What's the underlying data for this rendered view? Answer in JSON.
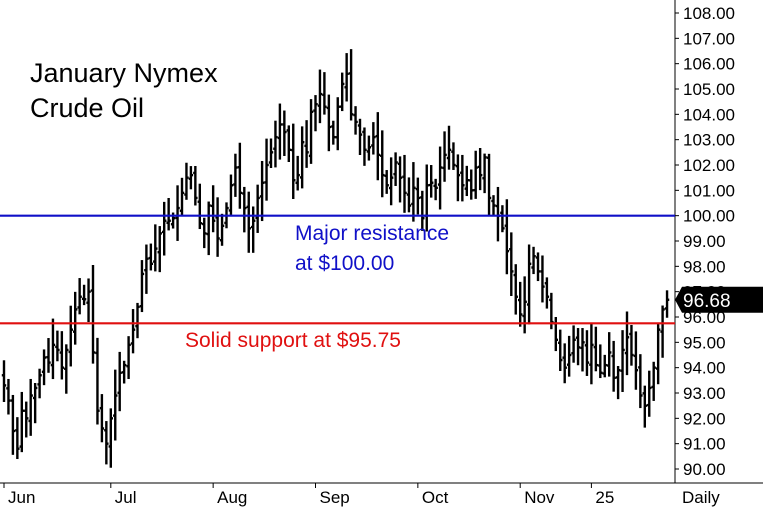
{
  "chart_data": {
    "type": "bar",
    "title_lines": [
      "January Nymex",
      "Crude Oil"
    ],
    "timeframe_label": "Daily",
    "ylim": [
      90,
      108.5
    ],
    "y_ticks": [
      "108.00",
      "107.00",
      "106.00",
      "105.00",
      "104.00",
      "103.00",
      "102.00",
      "101.00",
      "100.00",
      "99.00",
      "98.00",
      "97.00",
      "96.00",
      "95.00",
      "94.00",
      "93.00",
      "92.00",
      "91.00",
      "90.00"
    ],
    "x_labels": [
      "Jun",
      "Jul",
      "Aug",
      "Sep",
      "Oct",
      "Nov",
      "25"
    ],
    "x_label_positions": [
      0,
      24,
      47,
      70,
      93,
      116,
      132
    ],
    "last_price": "96.68",
    "last_price_value": 96.68,
    "lines": [
      {
        "name": "resistance",
        "value": 100.0,
        "color": "#1010c8",
        "label_lines": [
          "Major resistance",
          "at $100.00"
        ]
      },
      {
        "name": "support",
        "value": 95.75,
        "color": "#e01010",
        "label_lines": [
          "Solid support at $95.75"
        ]
      }
    ],
    "series": [
      {
        "name": "close",
        "values": [
          93.3,
          92.7,
          91.5,
          90.8,
          92.3,
          92.0,
          92.9,
          93.2,
          93.7,
          94.4,
          94.2,
          94.9,
          94.7,
          94.0,
          94.7,
          95.5,
          96.3,
          96.8,
          96.7,
          97.0,
          94.6,
          92.3,
          91.6,
          91.0,
          92.0,
          92.9,
          93.8,
          94.1,
          94.9,
          95.5,
          96.4,
          97.7,
          98.3,
          98.1,
          98.7,
          99.3,
          99.8,
          99.8,
          99.9,
          100.3,
          100.9,
          101.5,
          101.6,
          100.7,
          99.7,
          99.3,
          100.4,
          99.8,
          99.1,
          99.6,
          100.3,
          101.2,
          101.9,
          100.9,
          100.3,
          99.5,
          99.8,
          100.7,
          101.3,
          102.0,
          102.5,
          103.1,
          103.6,
          103.3,
          102.6,
          101.4,
          101.6,
          102.9,
          102.5,
          104.1,
          104.4,
          104.8,
          104.3,
          103.5,
          103.1,
          104.3,
          105.2,
          105.6,
          104.0,
          103.7,
          103.2,
          102.6,
          102.7,
          103.1,
          102.4,
          101.6,
          101.2,
          101.5,
          102.1,
          101.5,
          100.9,
          100.4,
          101.1,
          100.7,
          99.9,
          101.2,
          101.3,
          101.1,
          101.9,
          102.4,
          102.6,
          102.0,
          101.6,
          101.2,
          101.4,
          101.0,
          101.9,
          101.6,
          102.3,
          100.7,
          100.4,
          100.0,
          99.5,
          98.6,
          97.8,
          96.8,
          96.1,
          96.6,
          98.1,
          98.4,
          97.8,
          97.2,
          96.8,
          95.8,
          95.1,
          94.3,
          94.0,
          94.5,
          95.1,
          94.8,
          95.0,
          94.2,
          94.9,
          94.1,
          93.8,
          94.1,
          94.6,
          93.6,
          93.9,
          94.7,
          95.2,
          94.5,
          93.9,
          92.9,
          92.5,
          93.2,
          94.0,
          95.5,
          96.3,
          96.68
        ]
      }
    ]
  }
}
